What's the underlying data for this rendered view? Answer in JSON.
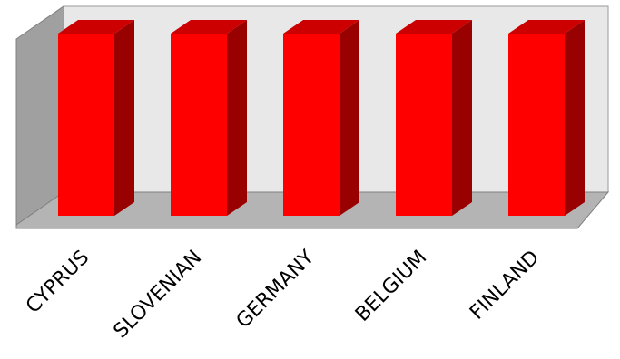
{
  "chart_data": {
    "type": "bar",
    "style": "3d",
    "categories": [
      "CYPRUS",
      "SLOVENIAN",
      "GERMANY",
      "BELGIUM",
      "FINLAND"
    ],
    "values": [
      100,
      100,
      100,
      100,
      100
    ],
    "ylim": [
      0,
      100
    ],
    "grid": false,
    "legend": "none",
    "colors": {
      "bar_front": "#ff0000",
      "bar_top": "#cc0000",
      "bar_side": "#990000",
      "back_wall": "#e8e8e8",
      "side_wall": "#a0a0a0",
      "floor": "#b4b4b4"
    }
  }
}
